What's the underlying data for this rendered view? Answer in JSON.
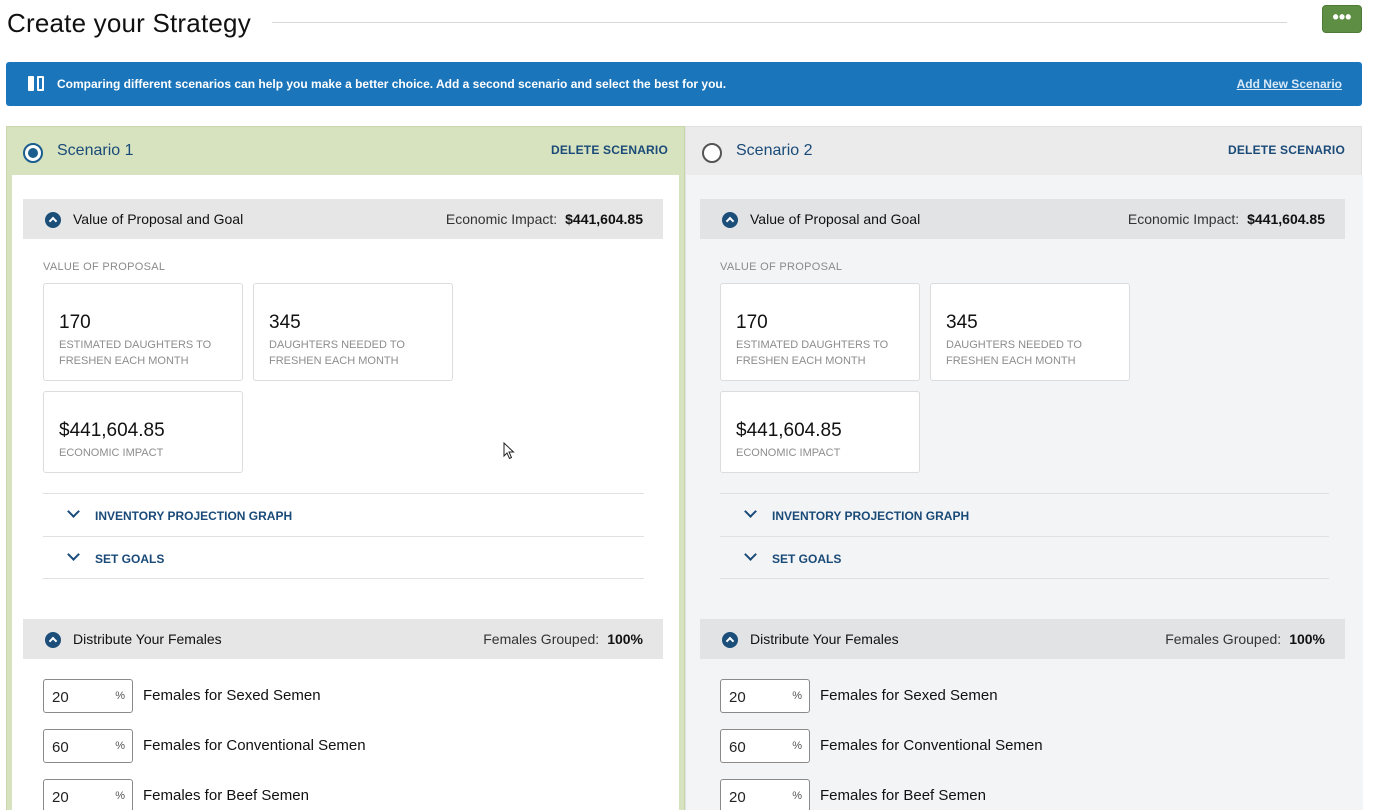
{
  "page": {
    "title": "Create your Strategy",
    "more_button": "•••"
  },
  "banner": {
    "icon": "compare-columns-icon",
    "text": "Comparing different scenarios can help you make a better choice. Add a second scenario and select the best for you.",
    "link": "Add New Scenario",
    "color": "#1b75bb"
  },
  "colors": {
    "selected_scenario_bg": "#d7e3bf",
    "more_button_bg": "#5e8e44",
    "accent": "#1a4a78"
  },
  "scenarios": [
    {
      "name": "Scenario 1",
      "selected": true,
      "delete_label": "DELETE SCENARIO",
      "value_section": {
        "title": "Value of Proposal and Goal",
        "metric_label": "Economic Impact:",
        "metric_value": "$441,604.85",
        "sub_label": "VALUE OF PROPOSAL",
        "cards": [
          {
            "value": "170",
            "label": "ESTIMATED DAUGHTERS TO FRESHEN EACH MONTH"
          },
          {
            "value": "345",
            "label": "DAUGHTERS NEEDED TO FRESHEN EACH MONTH"
          },
          {
            "value": "$441,604.85",
            "label": "ECONOMIC IMPACT"
          }
        ],
        "expanders": [
          "INVENTORY PROJECTION GRAPH",
          "SET GOALS"
        ]
      },
      "distribute_section": {
        "title": "Distribute Your Females",
        "metric_label": "Females Grouped:",
        "metric_value": "100%",
        "rows": [
          {
            "value": "20",
            "unit": "%",
            "label": "Females for Sexed Semen"
          },
          {
            "value": "60",
            "unit": "%",
            "label": "Females for Conventional Semen"
          },
          {
            "value": "20",
            "unit": "%",
            "label": "Females for Beef Semen"
          }
        ]
      }
    },
    {
      "name": "Scenario 2",
      "selected": false,
      "delete_label": "DELETE SCENARIO",
      "value_section": {
        "title": "Value of Proposal and Goal",
        "metric_label": "Economic Impact:",
        "metric_value": "$441,604.85",
        "sub_label": "VALUE OF PROPOSAL",
        "cards": [
          {
            "value": "170",
            "label": "ESTIMATED DAUGHTERS TO FRESHEN EACH MONTH"
          },
          {
            "value": "345",
            "label": "DAUGHTERS NEEDED TO FRESHEN EACH MONTH"
          },
          {
            "value": "$441,604.85",
            "label": "ECONOMIC IMPACT"
          }
        ],
        "expanders": [
          "INVENTORY PROJECTION GRAPH",
          "SET GOALS"
        ]
      },
      "distribute_section": {
        "title": "Distribute Your Females",
        "metric_label": "Females Grouped:",
        "metric_value": "100%",
        "rows": [
          {
            "value": "20",
            "unit": "%",
            "label": "Females for Sexed Semen"
          },
          {
            "value": "60",
            "unit": "%",
            "label": "Females for Conventional Semen"
          },
          {
            "value": "20",
            "unit": "%",
            "label": "Females for Beef Semen"
          }
        ]
      }
    }
  ]
}
